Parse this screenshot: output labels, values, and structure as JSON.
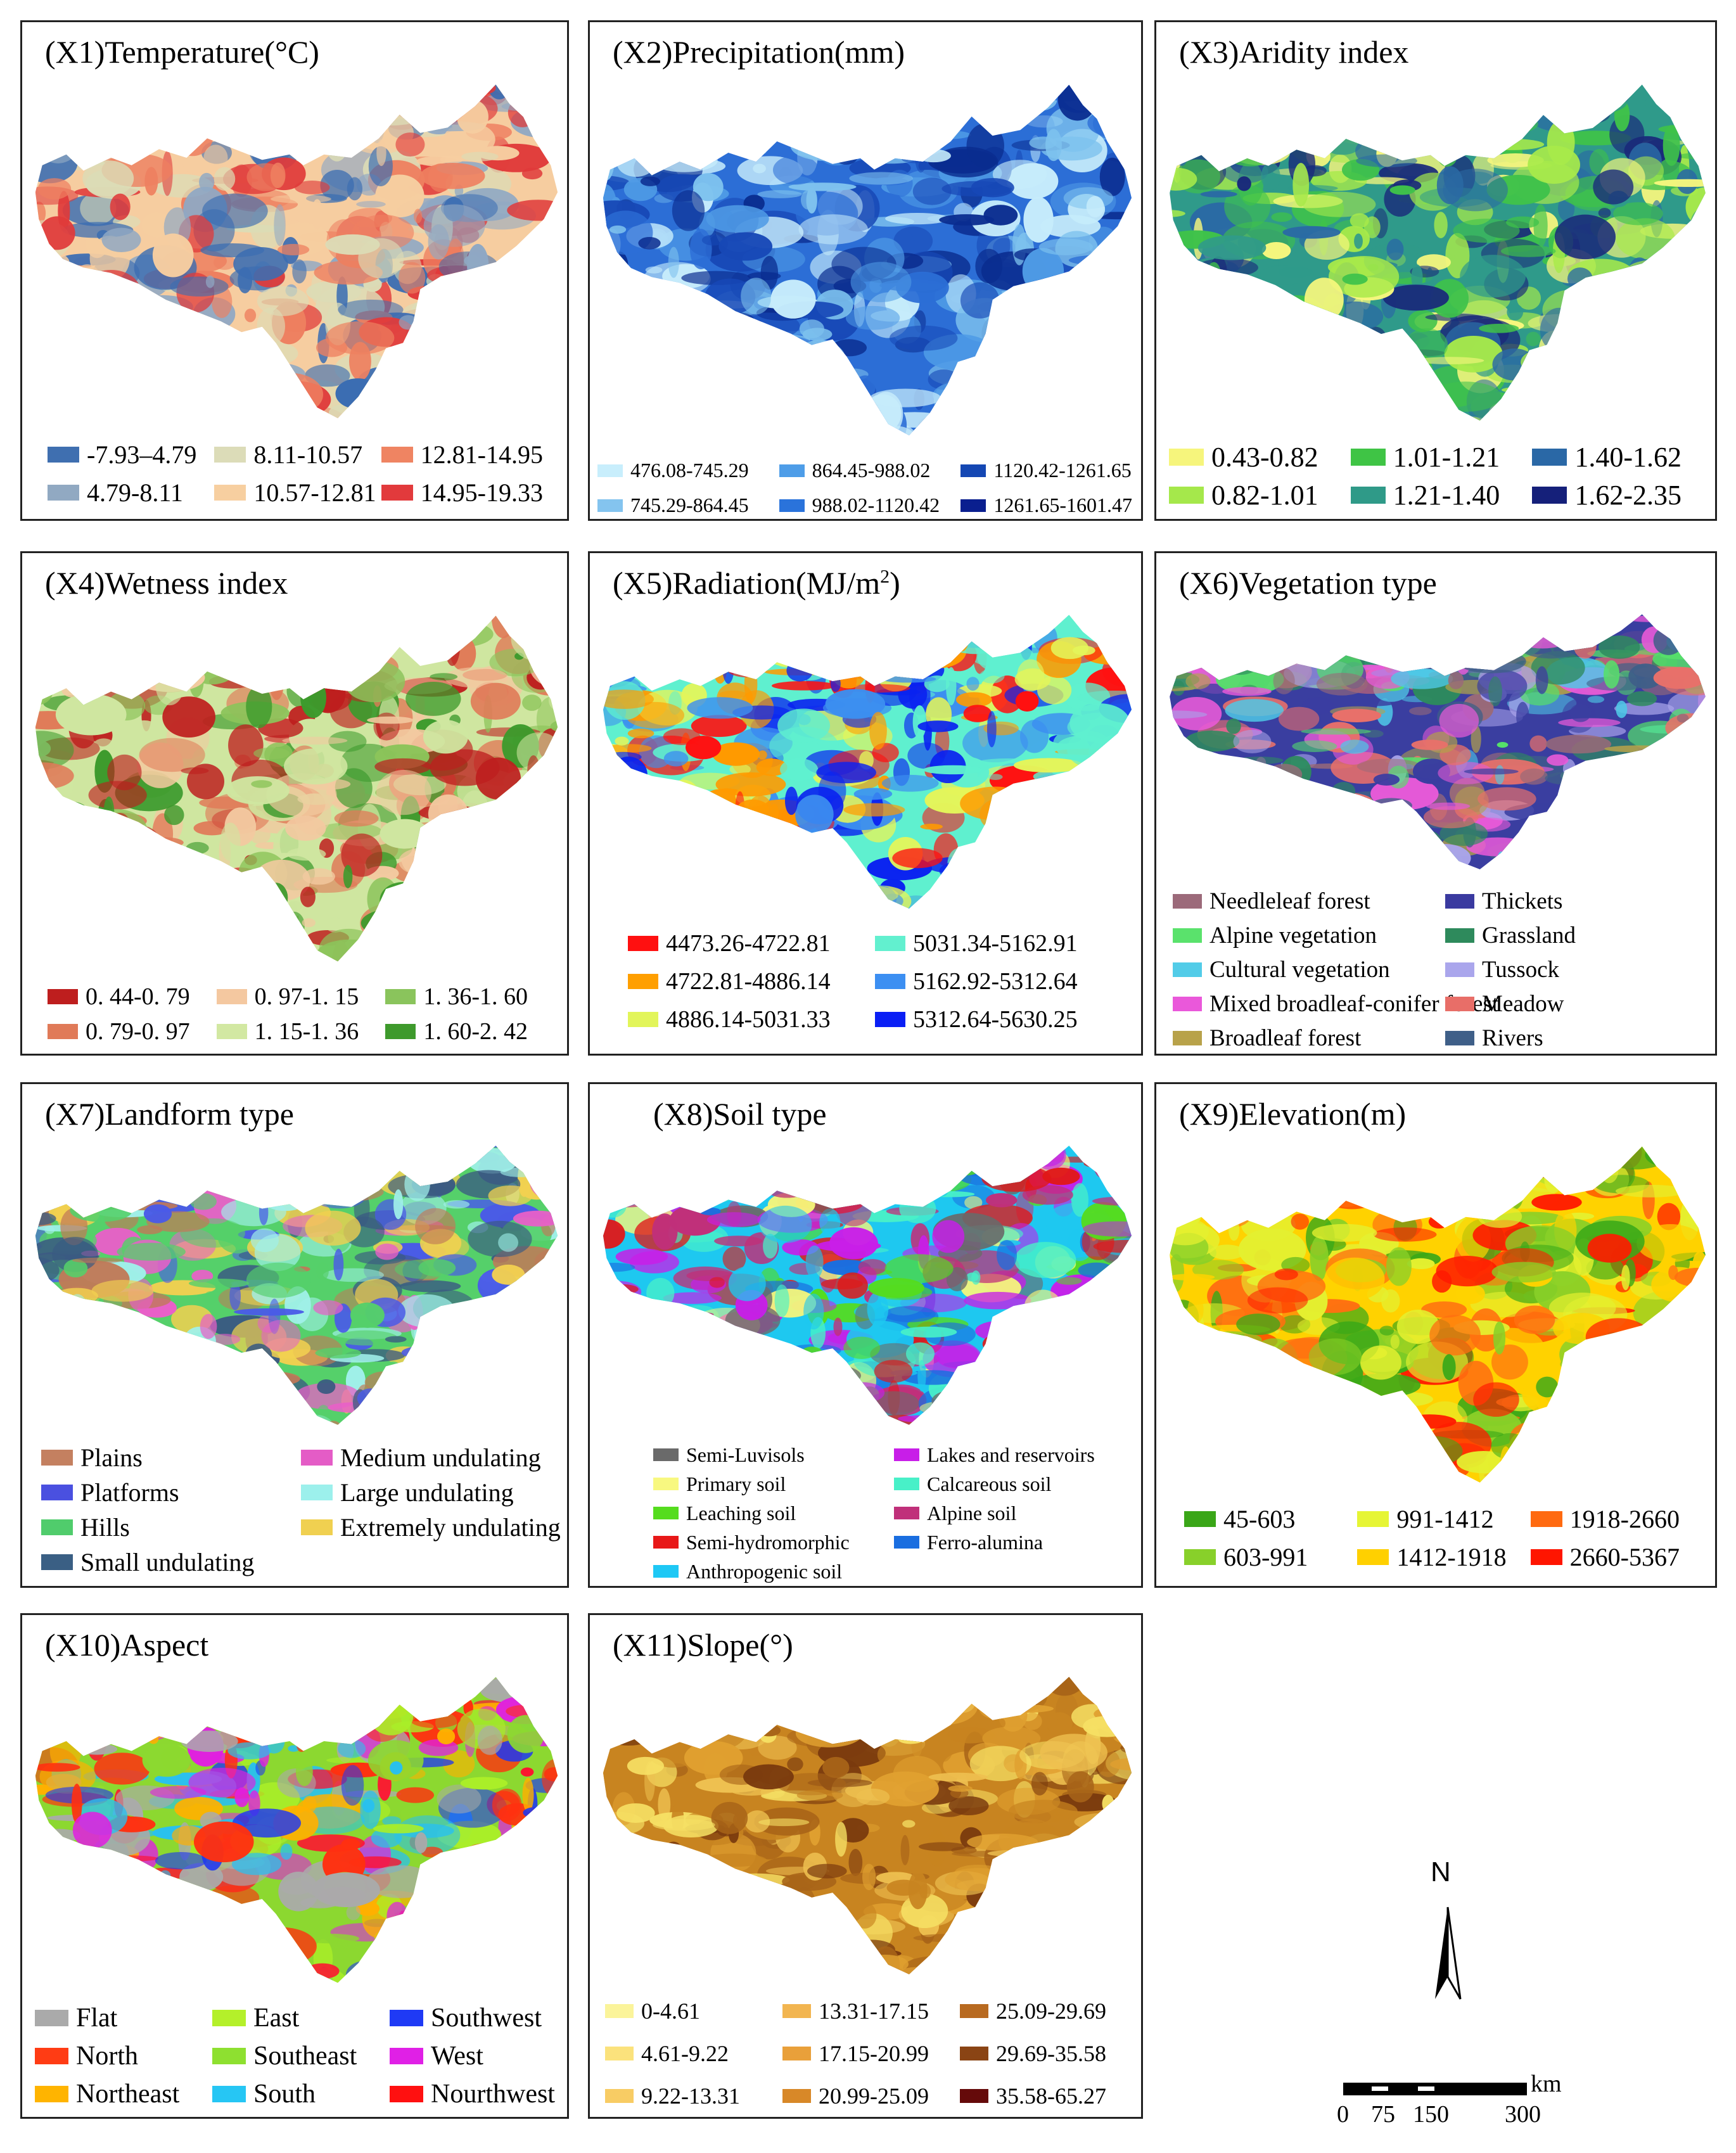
{
  "panels": [
    {
      "title": "(X1)Temperature(°C)",
      "palette": [
        "#3b6db2",
        "#8fa8c4",
        "#dcdcb6",
        "#f6cda0",
        "#ee8060",
        "#e03a3a"
      ],
      "legend": {
        "cols": 3,
        "fs": 40,
        "items": [
          {
            "label": "-7.93–4.79",
            "color": "#3f6fb0"
          },
          {
            "label": "4.79-8.11",
            "color": "#91a9c2"
          },
          {
            "label": "8.11-10.57",
            "color": "#dcdcb8"
          },
          {
            "label": "10.57-12.81",
            "color": "#f7cfa0"
          },
          {
            "label": "12.81-14.95",
            "color": "#ef8462"
          },
          {
            "label": "14.95-19.33",
            "color": "#e23a3c"
          }
        ]
      }
    },
    {
      "title": "(X2)Precipitation(mm)",
      "palette": [
        "#c6ecfb",
        "#7ec2ee",
        "#4f9be6",
        "#2c6ed6",
        "#1748b6",
        "#0a2c8f"
      ],
      "legend": {
        "cols": 3,
        "fs": 32,
        "items": [
          {
            "label": "476.08-745.29",
            "color": "#c8eefc"
          },
          {
            "label": "745.29-864.45",
            "color": "#84c4ef"
          },
          {
            "label": "864.45-988.02",
            "color": "#4e9de8"
          },
          {
            "label": "988.02-1120.42",
            "color": "#2a73db"
          },
          {
            "label": "1120.42-1261.65",
            "color": "#1447b3"
          },
          {
            "label": "1261.65-1601.47",
            "color": "#0a1f8f"
          }
        ]
      }
    },
    {
      "title": "(X3)Aridity index",
      "palette": [
        "#f7f77d",
        "#a8ea4a",
        "#3fc24a",
        "#2f9a8a",
        "#2a6aa4",
        "#1a2a7a"
      ],
      "legend": {
        "cols": 3,
        "fs": 44,
        "items": [
          {
            "label": "0.43-0.82",
            "color": "#f6f57c"
          },
          {
            "label": "0.82-1.01",
            "color": "#a5e84b"
          },
          {
            "label": "1.01-1.21",
            "color": "#3fc445"
          },
          {
            "label": "1.21-1.40",
            "color": "#2f9a88"
          },
          {
            "label": "1.40-1.62",
            "color": "#2a68a6"
          },
          {
            "label": "1.62-2.35",
            "color": "#15207a"
          }
        ]
      }
    },
    {
      "title": "(X4)Wetness index",
      "palette": [
        "#be1e1e",
        "#e07a58",
        "#f3c9a0",
        "#cfe6a0",
        "#8cc45a",
        "#3c9a2c"
      ],
      "legend": {
        "cols": 3,
        "fs": 38,
        "items": [
          {
            "label": "0. 44-0. 79",
            "color": "#be1e1e"
          },
          {
            "label": "0. 79-0. 97",
            "color": "#e07a58"
          },
          {
            "label": "0. 97-1. 15",
            "color": "#f4c8a0"
          },
          {
            "label": "1. 15-1. 36",
            "color": "#d2e8a2"
          },
          {
            "label": "1. 36-1. 60",
            "color": "#8ac45c"
          },
          {
            "label": "1. 60-2. 42",
            "color": "#3e9a2c"
          }
        ]
      }
    },
    {
      "title": "(X5)Radiation(MJ/m",
      "title_sup": "2",
      "title_end": ")",
      "palette": [
        "#ff1010",
        "#ff9a00",
        "#e4f55a",
        "#5ff0cf",
        "#3c8ef0",
        "#0a22f0"
      ],
      "legend": {
        "cols": 2,
        "fs": 38,
        "items": [
          {
            "label": "4473.26-4722.81",
            "color": "#ff1010"
          },
          {
            "label": "4722.81-4886.14",
            "color": "#ff9f00"
          },
          {
            "label": "4886.14-5031.33",
            "color": "#e2f55a"
          },
          {
            "label": "5031.34-5162.91",
            "color": "#62f0cf"
          },
          {
            "label": "5162.92-5312.64",
            "color": "#3c8ff2"
          },
          {
            "label": "5312.64-5630.25",
            "color": "#0a1ff5"
          }
        ]
      }
    },
    {
      "title": "(X6)Vegetation type",
      "palette": [
        "#9a6a78",
        "#55e06a",
        "#4fc8e6",
        "#e85ad8",
        "#b4a14a",
        "#3a3ea0",
        "#2e8a5e",
        "#a9a4ea",
        "#e8706a",
        "#3f5f88"
      ],
      "legend": {
        "cols": 2,
        "fs": 37,
        "items": [
          {
            "label": "Needleleaf forest",
            "color": "#9c6a7a"
          },
          {
            "label": "Alpine vegetation",
            "color": "#5ae26c"
          },
          {
            "label": "Cultural vegetation",
            "color": "#52cce8"
          },
          {
            "label": "Mixed broadleaf-conifer forest",
            "color": "#ea58da"
          },
          {
            "label": "Broadleaf forest",
            "color": "#b8a24a"
          },
          {
            "label": "Thickets",
            "color": "#3a3aa0"
          },
          {
            "label": "Grassland",
            "color": "#2e8a5c"
          },
          {
            "label": "Tussock",
            "color": "#aaa6ec"
          },
          {
            "label": "Meadow",
            "color": "#e86e68"
          },
          {
            "label": "Rivers",
            "color": "#3f5f88"
          }
        ]
      }
    },
    {
      "title": "(X7)Landform type",
      "palette": [
        "#a0f0ea",
        "#e860c8",
        "#3a5a82",
        "#55d06a",
        "#4a5ae8",
        "#f2d050",
        "#c07a58"
      ],
      "legend": {
        "cols": 2,
        "fs": 40,
        "items": [
          {
            "label": "Plains",
            "color": "#c48060"
          },
          {
            "label": "Platforms",
            "color": "#4a50e0"
          },
          {
            "label": "Hills",
            "color": "#50cc6c"
          },
          {
            "label": "Small undulating",
            "color": "#3a5f84"
          },
          {
            "label": "Medium undulating",
            "color": "#e45cc6"
          },
          {
            "label": "Large undulating",
            "color": "#9cf0ec"
          },
          {
            "label": "Extremely undulating",
            "color": "#f0d050"
          }
        ]
      }
    },
    {
      "title": "(X8)Soil type",
      "palette": [
        "#55dc1e",
        "#f6f67a",
        "#6a6a6a",
        "#1a6ee0",
        "#1ec8f0",
        "#e01818",
        "#c81ee8",
        "#48f0c8",
        "#c0307a"
      ],
      "legend": {
        "cols": 2,
        "fs": 32,
        "items": [
          {
            "label": "Semi-Luvisols",
            "color": "#6a6a6a"
          },
          {
            "label": "Primary soil",
            "color": "#f8f880"
          },
          {
            "label": "Leaching soil",
            "color": "#55dc1e"
          },
          {
            "label": "Semi-hydromorphic",
            "color": "#e81818"
          },
          {
            "label": "Anthropogenic soil",
            "color": "#1ec8f5"
          },
          {
            "label": "Lakes and reservoirs",
            "color": "#c81ee8"
          },
          {
            "label": "Calcareous soil",
            "color": "#48f0c8"
          },
          {
            "label": "Alpine soil",
            "color": "#c0307a"
          },
          {
            "label": "Ferro-alumina",
            "color": "#1a6ee0"
          }
        ]
      }
    },
    {
      "title": "(X9)Elevation(m)",
      "palette": [
        "#3aa818",
        "#88d028",
        "#e4f030",
        "#ffd200",
        "#ff7010",
        "#ff1a00"
      ],
      "legend": {
        "cols": 3,
        "fs": 40,
        "items": [
          {
            "label": "45-603",
            "color": "#3aa618"
          },
          {
            "label": "603-991",
            "color": "#88d02a"
          },
          {
            "label": "991-1412",
            "color": "#e6f535"
          },
          {
            "label": "1412-1918",
            "color": "#ffd000"
          },
          {
            "label": "1918-2660",
            "color": "#ff6a10"
          },
          {
            "label": "2660-5367",
            "color": "#ff1500"
          }
        ]
      }
    },
    {
      "title": "(X10)Aspect",
      "palette": [
        "#aaaaaa",
        "#ff3010",
        "#ffb000",
        "#aaee28",
        "#8cd830",
        "#28c0f0",
        "#2038f0",
        "#e020e0",
        "#ff1030"
      ],
      "legend": {
        "cols": 3,
        "fs": 42,
        "items": [
          {
            "label": "Flat",
            "color": "#aaaaaa"
          },
          {
            "label": "North",
            "color": "#ff3c14"
          },
          {
            "label": "Northeast",
            "color": "#ffb400"
          },
          {
            "label": "East",
            "color": "#b4f02a"
          },
          {
            "label": "Southeast",
            "color": "#8ee030"
          },
          {
            "label": "South",
            "color": "#26c6f4"
          },
          {
            "label": "Southwest",
            "color": "#1f3af5"
          },
          {
            "label": "West",
            "color": "#e020e6"
          },
          {
            "label": "Nourthwest",
            "color": "#ff1010"
          }
        ]
      }
    },
    {
      "title": "(X11)Slope(°)",
      "palette": [
        "#f6e064",
        "#eec050",
        "#e0a030",
        "#c88420",
        "#a86418",
        "#7a3a0e"
      ],
      "legend": {
        "cols": 3,
        "fs": 36,
        "items": [
          {
            "label": "0-4.61",
            "color": "#fbf49a"
          },
          {
            "label": "4.61-9.22",
            "color": "#fbe27c"
          },
          {
            "label": "9.22-13.31",
            "color": "#f8cc64"
          },
          {
            "label": "13.31-17.15",
            "color": "#f2b550"
          },
          {
            "label": "17.15-20.99",
            "color": "#e9a03a"
          },
          {
            "label": "20.99-25.09",
            "color": "#d88828"
          },
          {
            "label": "25.09-29.69",
            "color": "#b86a20"
          },
          {
            "label": "29.69-35.58",
            "color": "#8a4414"
          },
          {
            "label": "35.58-65.27",
            "color": "#650a0a"
          }
        ]
      }
    }
  ],
  "compass": {
    "label": "N"
  },
  "scalebar": {
    "ticks": [
      "0",
      "75",
      "150",
      "300"
    ],
    "unit": "km"
  }
}
